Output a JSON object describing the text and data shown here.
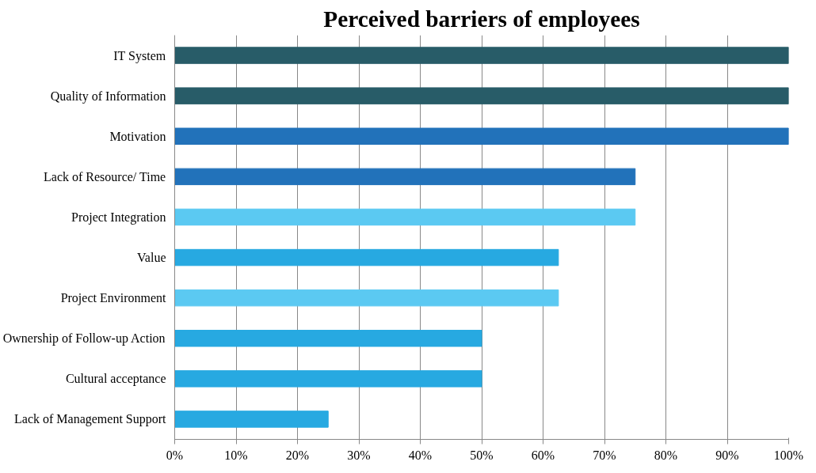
{
  "chart_data": {
    "type": "bar",
    "orientation": "horizontal",
    "title": "Perceived barriers of employees",
    "categories": [
      "IT System",
      "Quality of Information",
      "Motivation",
      "Lack of Resource/ Time",
      "Project Integration",
      "Value",
      "Project Environment",
      "Ownership of Follow-up Action",
      "Cultural acceptance",
      "Lack of Management Support"
    ],
    "values": [
      100,
      100,
      100,
      75,
      75,
      62.5,
      62.5,
      50,
      50,
      25
    ],
    "colors": [
      "#285c68",
      "#285c68",
      "#2272ba",
      "#2272ba",
      "#5bc9f2",
      "#27a9e1",
      "#5bc9f2",
      "#27a9e1",
      "#27a9e1",
      "#27a9e1"
    ],
    "xlim": [
      0,
      100
    ],
    "xticks": [
      {
        "value": 0,
        "label": "0%"
      },
      {
        "value": 10,
        "label": "10%"
      },
      {
        "value": 20,
        "label": "20%"
      },
      {
        "value": 30,
        "label": "30%"
      },
      {
        "value": 40,
        "label": "40%"
      },
      {
        "value": 50,
        "label": "50%"
      },
      {
        "value": 60,
        "label": "60%"
      },
      {
        "value": 70,
        "label": "70%"
      },
      {
        "value": 80,
        "label": "80%"
      },
      {
        "value": 90,
        "label": "90%"
      },
      {
        "value": 100,
        "label": "100%"
      }
    ],
    "grid": "x"
  }
}
